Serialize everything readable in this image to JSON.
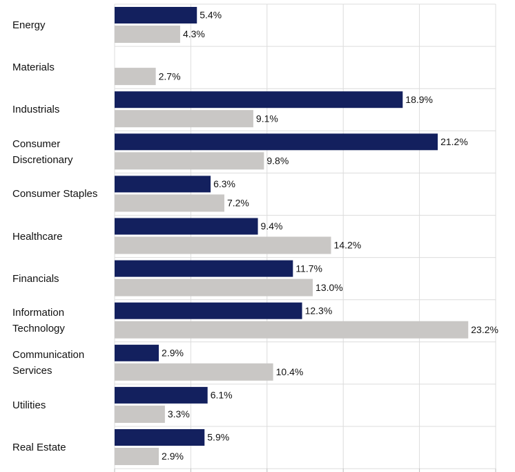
{
  "chart_data": {
    "type": "barh",
    "categories": [
      "Energy",
      "Materials",
      "Industrials",
      "Consumer Discretionary",
      "Consumer Staples",
      "Healthcare",
      "Financials",
      "Information Technology",
      "Communication Services",
      "Utilities",
      "Real Estate"
    ],
    "series": [
      {
        "color": "#13205e",
        "values": [
          5.4,
          null,
          18.9,
          21.2,
          6.3,
          9.4,
          11.7,
          12.3,
          2.9,
          6.1,
          5.9
        ],
        "value_labels": [
          "5.4%",
          null,
          "18.9%",
          "21.2%",
          "6.3%",
          "9.4%",
          "11.7%",
          "12.3%",
          "2.9%",
          "6.1%",
          "5.9%"
        ]
      },
      {
        "color": "#c9c7c5",
        "values": [
          4.3,
          2.7,
          9.1,
          9.8,
          7.2,
          14.2,
          13.0,
          23.2,
          10.4,
          3.3,
          2.9
        ],
        "value_labels": [
          "4.3%",
          "2.7%",
          "9.1%",
          "9.8%",
          "7.2%",
          "14.2%",
          "13.0%",
          "23.2%",
          "10.4%",
          "3.3%",
          "2.9%"
        ]
      }
    ],
    "xlim": [
      0,
      25
    ],
    "xticks": [
      0,
      5,
      10,
      15,
      20,
      25
    ],
    "grid": true
  }
}
